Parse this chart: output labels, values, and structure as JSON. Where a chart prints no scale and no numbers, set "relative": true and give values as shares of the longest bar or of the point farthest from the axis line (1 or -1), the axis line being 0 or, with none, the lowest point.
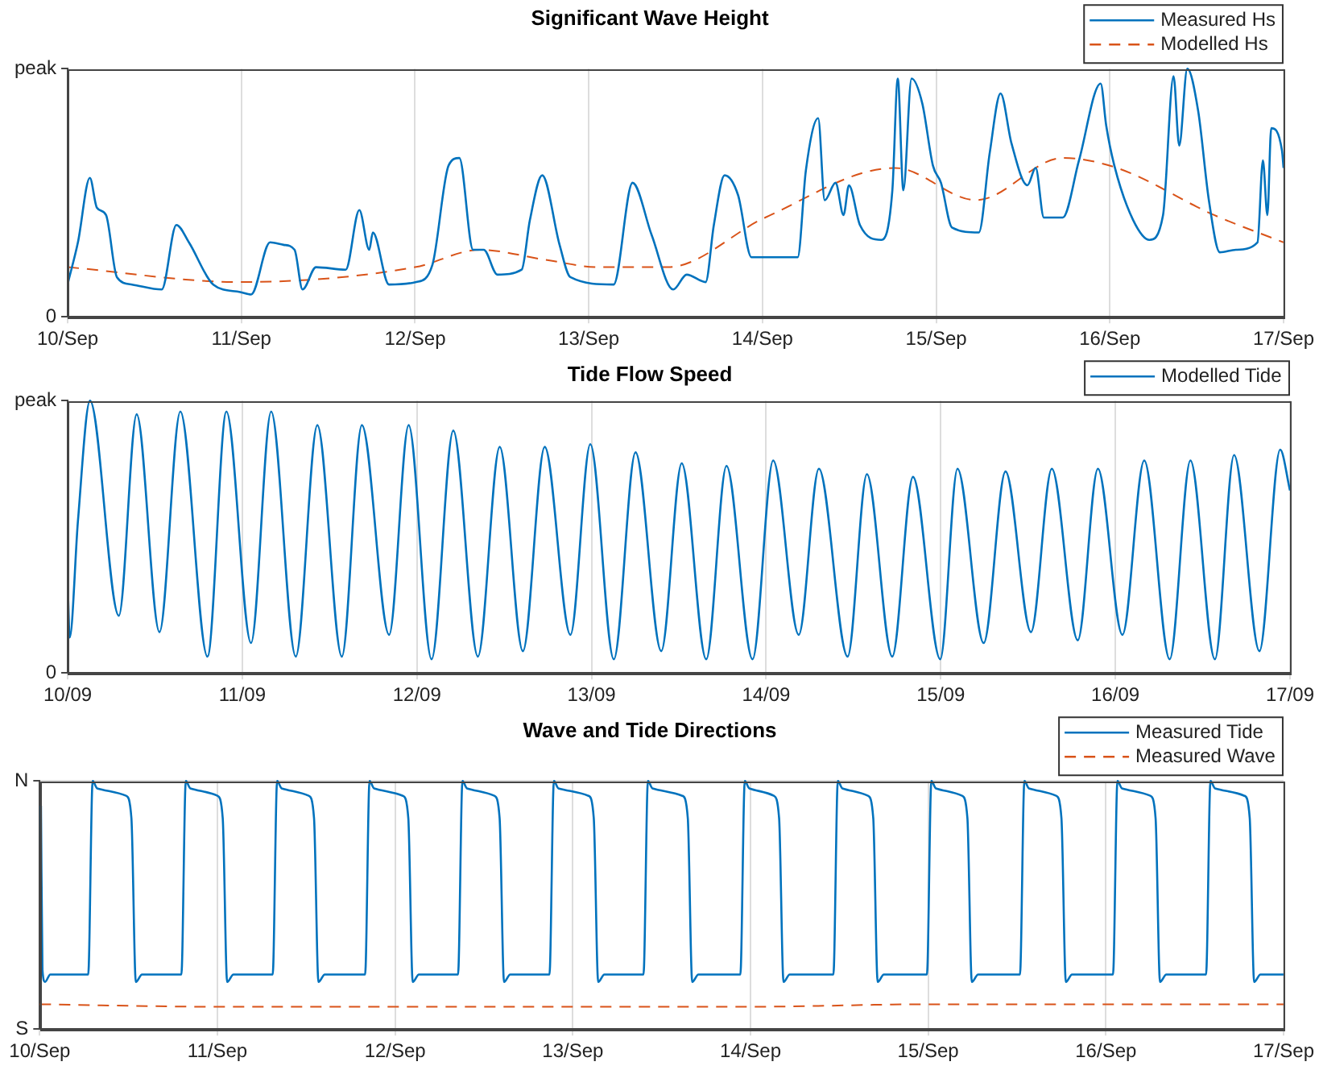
{
  "chart_data": [
    {
      "type": "line",
      "title": "Significant Wave Height",
      "relative": true,
      "xlim": [
        "--09-10",
        "--09-17"
      ],
      "xticks": [
        {
          "value": "--09-10",
          "label": "10/Sep"
        },
        {
          "value": "--09-11",
          "label": "11/Sep"
        },
        {
          "value": "--09-12",
          "label": "12/Sep"
        },
        {
          "value": "--09-13",
          "label": "13/Sep"
        },
        {
          "value": "--09-14",
          "label": "14/Sep"
        },
        {
          "value": "--09-15",
          "label": "15/Sep"
        },
        {
          "value": "--09-16",
          "label": "16/Sep"
        },
        {
          "value": "--09-17",
          "label": "17/Sep"
        }
      ],
      "annotations": [
        "0",
        "peak"
      ],
      "grid": "x",
      "legend": "top right",
      "series": [
        {
          "name": "Measured Hs",
          "color": "#0072bd",
          "line_style": "solid",
          "x": [
            "--09-10T00:04",
            "--09-10T01:25",
            "--09-10T03:04",
            "--09-10T04:02",
            "--09-10T05:18",
            "--09-10T06:48",
            "--09-10T08:54",
            "--09-10T13:00",
            "--09-10T15:01",
            "--09-10T16:45",
            "--09-10T20:07",
            "--09-10T23:50",
            "--09-11T01:21",
            "--09-11T03:58",
            "--09-11T05:50",
            "--09-11T07:21",
            "--09-11T08:27",
            "--09-11T10:19",
            "--09-11T14:25",
            "--09-11T16:18",
            "--09-11T17:40",
            "--09-11T18:10",
            "--09-11T20:24",
            "--09-12T00:10",
            "--09-12T02:24",
            "--09-12T04:38",
            "--09-12T06:07",
            "--09-12T08:01",
            "--09-12T09:29",
            "--09-12T11:23",
            "--09-12T14:44",
            "--09-12T15:52",
            "--09-12T17:34",
            "--09-12T19:58",
            "--09-12T21:27",
            "--09-13T03:26",
            "--09-13T06:03",
            "--09-13T08:41",
            "--09-13T11:40",
            "--09-13T13:32",
            "--09-13T16:09",
            "--09-13T17:17",
            "--09-13T18:46",
            "--09-13T20:38",
            "--09-13T22:29",
            "--09-14T04:52",
            "--09-14T06:00",
            "--09-14T07:42",
            "--09-14T08:36",
            "--09-14T10:06",
            "--09-14T11:12",
            "--09-14T11:57",
            "--09-14T13:28",
            "--09-14T16:26",
            "--09-14T17:57",
            "--09-14T18:42",
            "--09-14T19:28",
            "--09-14T20:36",
            "--09-14T22:05",
            "--09-14T23:33",
            "--09-15T00:40",
            "--09-15T02:11",
            "--09-15T05:54",
            "--09-15T07:24",
            "--09-15T08:54",
            "--09-15T10:24",
            "--09-15T12:37",
            "--09-15T13:45",
            "--09-15T14:53",
            "--09-15T17:30",
            "--09-15T19:44",
            "--09-15T22:44",
            "--09-15T23:30",
            "--09-16T00:37",
            "--09-16T03:13",
            "--09-16T05:28",
            "--09-16T07:21",
            "--09-16T08:48",
            "--09-16T09:35",
            "--09-16T10:42",
            "--09-16T12:12",
            "--09-16T13:41",
            "--09-16T15:12",
            "--09-16T17:25",
            "--09-16T20:24",
            "--09-16T21:09",
            "--09-16T21:46",
            "--09-16T22:18",
            "--09-16T23:47",
            "--09-17T00:00"
          ],
          "values": [
            0.14,
            0.3,
            0.56,
            0.44,
            0.41,
            0.16,
            0.13,
            0.11,
            0.37,
            0.3,
            0.13,
            0.1,
            0.09,
            0.3,
            0.29,
            0.27,
            0.11,
            0.2,
            0.19,
            0.43,
            0.27,
            0.34,
            0.13,
            0.14,
            0.21,
            0.61,
            0.64,
            0.27,
            0.27,
            0.17,
            0.19,
            0.39,
            0.57,
            0.29,
            0.16,
            0.13,
            0.54,
            0.33,
            0.11,
            0.17,
            0.14,
            0.37,
            0.57,
            0.49,
            0.24,
            0.24,
            0.59,
            0.8,
            0.47,
            0.54,
            0.41,
            0.53,
            0.37,
            0.31,
            0.51,
            0.96,
            0.51,
            0.96,
            0.86,
            0.61,
            0.54,
            0.36,
            0.34,
            0.66,
            0.9,
            0.7,
            0.53,
            0.6,
            0.4,
            0.4,
            0.63,
            0.94,
            0.77,
            0.61,
            0.39,
            0.31,
            0.41,
            0.97,
            0.69,
            1,
            0.83,
            0.47,
            0.26,
            0.27,
            0.3,
            0.63,
            0.41,
            0.76,
            0.67,
            0.6
          ]
        },
        {
          "name": "Modelled Hs",
          "color": "#d95319",
          "line_style": "dashed",
          "x": [
            "--09-10T00:00",
            "--09-10T23:50",
            "--09-12T00:00",
            "--09-12T08:58",
            "--09-12T17:57",
            "--09-13T01:26",
            "--09-13T10:55",
            "--09-14T00:23",
            "--09-14T18:20",
            "--09-15T05:33",
            "--09-15T17:30",
            "--09-16T00:58",
            "--09-16T14:25",
            "--09-17T00:00"
          ],
          "values": [
            0.2,
            0.14,
            0.2,
            0.27,
            0.23,
            0.2,
            0.2,
            0.4,
            0.6,
            0.47,
            0.64,
            0.6,
            0.41,
            0.3
          ]
        }
      ]
    },
    {
      "type": "line",
      "title": "Tide Flow Speed",
      "relative": true,
      "xlim": [
        "--09-10",
        "--09-17"
      ],
      "xticks": [
        {
          "value": "--09-10",
          "label": "10/09"
        },
        {
          "value": "--09-11",
          "label": "11/09"
        },
        {
          "value": "--09-12",
          "label": "12/09"
        },
        {
          "value": "--09-13",
          "label": "13/09"
        },
        {
          "value": "--09-14",
          "label": "14/09"
        },
        {
          "value": "--09-15",
          "label": "15/09"
        },
        {
          "value": "--09-16",
          "label": "16/09"
        },
        {
          "value": "--09-17",
          "label": "17/09"
        }
      ],
      "annotations": [
        "0",
        "peak"
      ],
      "grid": "x",
      "legend": "top right",
      "series": [
        {
          "name": "Modelled Tide",
          "color": "#0072bd",
          "line_style": "solid",
          "x": [
            "--09-10T00:00",
            "--09-10T00:17",
            "--09-10T01:25",
            "--09-10T03:04",
            "--09-10T07:02",
            "--09-10T09:29",
            "--09-10T12:37",
            "--09-10T15:29",
            "--09-10T19:13",
            "--09-10T21:49",
            "--09-11T01:12",
            "--09-11T03:58",
            "--09-11T07:21",
            "--09-11T10:19",
            "--09-11T13:41",
            "--09-11T16:26",
            "--09-11T20:11",
            "--09-11T22:52",
            "--09-12T02:01",
            "--09-12T05:00",
            "--09-12T08:23",
            "--09-12T11:23",
            "--09-12T14:34",
            "--09-12T17:34",
            "--09-12T21:06",
            "--09-12T23:50",
            "--09-13T03:04",
            "--09-13T06:03",
            "--09-13T09:35",
            "--09-13T12:24",
            "--09-13T15:46",
            "--09-13T18:33",
            "--09-13T22:08",
            "--09-14T00:58",
            "--09-14T04:29",
            "--09-14T07:15",
            "--09-14T11:12",
            "--09-14T13:51",
            "--09-14T17:20",
            "--09-14T20:11",
            "--09-14T23:56",
            "--09-15T02:18",
            "--09-15T05:54",
            "--09-15T08:54",
            "--09-15T12:24",
            "--09-15T15:16",
            "--09-15T18:50",
            "--09-15T21:36",
            "--09-16T00:58",
            "--09-16T03:58",
            "--09-16T07:28",
            "--09-16T10:19",
            "--09-16T13:41",
            "--09-16T16:19",
            "--09-16T19:48",
            "--09-16T22:39",
            "--09-17T00:00"
          ],
          "values": [
            0.33,
            0.13,
            0.56,
            1,
            0.21,
            0.95,
            0.15,
            0.96,
            0.06,
            0.96,
            0.11,
            0.96,
            0.06,
            0.91,
            0.06,
            0.91,
            0.14,
            0.91,
            0.05,
            0.89,
            0.06,
            0.83,
            0.08,
            0.83,
            0.14,
            0.84,
            0.05,
            0.81,
            0.08,
            0.77,
            0.05,
            0.76,
            0.05,
            0.78,
            0.14,
            0.75,
            0.06,
            0.73,
            0.06,
            0.72,
            0.05,
            0.75,
            0.11,
            0.74,
            0.15,
            0.75,
            0.12,
            0.75,
            0.14,
            0.78,
            0.05,
            0.78,
            0.05,
            0.8,
            0.08,
            0.82,
            0.67
          ]
        }
      ]
    },
    {
      "type": "line",
      "title": "Wave and Tide Directions",
      "relative": true,
      "xlim": [
        "--09-10",
        "--09-17"
      ],
      "xticks": [
        {
          "value": "--09-10",
          "label": "10/Sep"
        },
        {
          "value": "--09-11",
          "label": "11/Sep"
        },
        {
          "value": "--09-12",
          "label": "12/Sep"
        },
        {
          "value": "--09-13",
          "label": "13/Sep"
        },
        {
          "value": "--09-14",
          "label": "14/Sep"
        },
        {
          "value": "--09-15",
          "label": "15/Sep"
        },
        {
          "value": "--09-16",
          "label": "16/Sep"
        },
        {
          "value": "--09-17",
          "label": "17/Sep"
        }
      ],
      "annotations": [
        "S",
        "N"
      ],
      "grid": true,
      "legend": "top right",
      "series": [
        {
          "name": "Measured Tide",
          "color": "#0072bd",
          "line_style": "solid",
          "x": [
            "--09-10T00:10",
            "--09-10T00:22",
            "--09-10T00:43",
            "--09-10T01:26",
            "--09-10T06:33",
            "--09-10T07:09",
            "--09-10T07:45",
            "--09-10T11:40",
            "--09-10T12:23",
            "--09-10T12:59",
            "--09-10T13:49",
            "--09-10T19:08",
            "--09-10T19:44",
            "--09-10T20:20",
            "--09-11T00:00",
            "--09-11T00:43",
            "--09-11T01:19",
            "--09-11T02:10",
            "--09-11T07:28",
            "--09-11T08:04",
            "--09-11T08:40",
            "--09-11T12:20",
            "--09-11T13:03",
            "--09-11T13:39",
            "--09-11T14:30",
            "--09-11T19:57",
            "--09-11T20:33",
            "--09-11T21:09",
            "--09-12T01:03",
            "--09-12T01:47",
            "--09-12T02:23",
            "--09-12T03:13",
            "--09-12T08:30",
            "--09-12T09:06",
            "--09-12T09:42",
            "--09-12T13:24",
            "--09-12T14:07",
            "--09-12T14:43",
            "--09-12T15:33",
            "--09-12T20:51",
            "--09-12T21:27",
            "--09-12T22:03",
            "--09-13T02:07",
            "--09-13T02:50",
            "--09-13T03:26",
            "--09-13T04:16",
            "--09-13T09:33",
            "--09-13T10:09",
            "--09-13T10:45",
            "--09-13T14:48",
            "--09-13T15:32",
            "--09-13T16:08",
            "--09-13T16:58",
            "--09-13T22:38",
            "--09-13T23:14",
            "--09-13T23:50",
            "--09-14T03:09",
            "--09-14T03:52",
            "--09-14T04:28",
            "--09-14T05:18",
            "--09-14T11:12",
            "--09-14T11:48",
            "--09-14T12:24",
            "--09-14T15:52",
            "--09-14T16:35",
            "--09-14T17:11",
            "--09-14T18:01",
            "--09-14T23:50",
            "--09-15T00:26",
            "--09-15T01:02",
            "--09-15T04:35",
            "--09-15T05:18",
            "--09-15T05:54",
            "--09-15T06:45",
            "--09-15T12:24",
            "--09-15T13:00",
            "--09-15T13:36",
            "--09-15T17:17",
            "--09-15T18:00",
            "--09-15T18:36",
            "--09-15T19:26",
            "--09-16T00:58",
            "--09-16T01:34",
            "--09-16T02:10",
            "--09-16T06:00",
            "--09-16T06:43",
            "--09-16T07:19",
            "--09-16T08:10",
            "--09-16T13:32",
            "--09-16T14:08",
            "--09-16T14:44",
            "--09-16T18:43",
            "--09-16T19:26",
            "--09-16T20:02",
            "--09-16T20:53",
            "--09-17T00:00"
          ],
          "values": [
            0.9,
            0.24,
            0.19,
            0.22,
            0.22,
            1,
            0.97,
            0.94,
            0.85,
            0.19,
            0.22,
            0.22,
            1,
            0.97,
            0.94,
            0.85,
            0.19,
            0.22,
            0.22,
            1,
            0.97,
            0.94,
            0.85,
            0.19,
            0.22,
            0.22,
            1,
            0.97,
            0.94,
            0.85,
            0.19,
            0.22,
            0.22,
            1,
            0.97,
            0.94,
            0.85,
            0.19,
            0.22,
            0.22,
            1,
            0.97,
            0.94,
            0.85,
            0.19,
            0.22,
            0.22,
            1,
            0.97,
            0.94,
            0.85,
            0.19,
            0.22,
            0.22,
            1,
            0.97,
            0.94,
            0.85,
            0.19,
            0.22,
            0.22,
            1,
            0.97,
            0.94,
            0.85,
            0.19,
            0.22,
            0.22,
            1,
            0.97,
            0.94,
            0.85,
            0.19,
            0.22,
            0.22,
            1,
            0.97,
            0.94,
            0.85,
            0.19,
            0.22,
            0.22,
            1,
            0.97,
            0.94,
            0.85,
            0.19,
            0.22,
            0.22,
            1,
            0.97,
            0.94,
            0.85,
            0.19,
            0.22,
            0.22
          ]
        },
        {
          "name": "Measured Wave",
          "color": "#d95319",
          "line_style": "dashed",
          "x": [
            "--09-10",
            "--09-11",
            "--09-12",
            "--09-13",
            "--09-14",
            "--09-15",
            "--09-16",
            "--09-17"
          ],
          "values": [
            0.1,
            0.09,
            0.09,
            0.09,
            0.09,
            0.1,
            0.1,
            0.1
          ]
        }
      ]
    }
  ]
}
